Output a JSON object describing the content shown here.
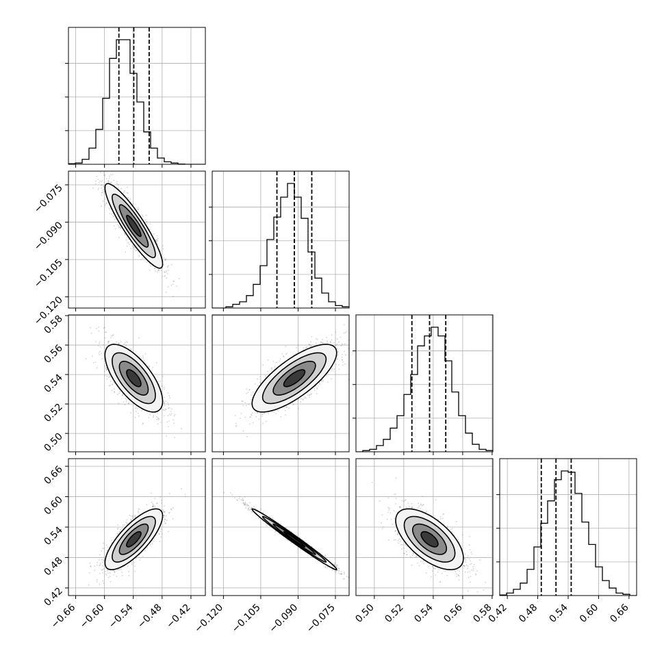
{
  "chart_data": {
    "type": "corner",
    "grid": true,
    "parameters": [
      {
        "range": [
          -0.675,
          -0.39
        ],
        "ticks": [
          -0.66,
          -0.6,
          -0.54,
          -0.48,
          -0.42
        ],
        "tick_labels": [
          "−0.66",
          "−0.60",
          "−0.54",
          "−0.48",
          "−0.42"
        ],
        "quantiles": [
          -0.57,
          -0.539,
          -0.507
        ]
      },
      {
        "range": [
          -0.1245,
          -0.0695
        ],
        "ticks": [
          -0.12,
          -0.105,
          -0.09,
          -0.075
        ],
        "tick_labels": [
          "−0.120",
          "−0.105",
          "−0.090",
          "−0.075"
        ],
        "quantiles": [
          -0.0985,
          -0.0915,
          -0.0845
        ]
      },
      {
        "range": [
          0.4875,
          0.5805
        ],
        "ticks": [
          0.5,
          0.52,
          0.54,
          0.56,
          0.58
        ],
        "tick_labels": [
          "0.50",
          "0.52",
          "0.54",
          "0.56",
          "0.58"
        ],
        "quantiles": [
          0.5255,
          0.5375,
          0.5485
        ]
      },
      {
        "range": [
          0.405,
          0.675
        ],
        "ticks": [
          0.42,
          0.48,
          0.54,
          0.6,
          0.66
        ],
        "tick_labels": [
          "0.42",
          "0.48",
          "0.54",
          "0.60",
          "0.66"
        ],
        "quantiles": [
          0.487,
          0.516,
          0.546
        ]
      }
    ],
    "histograms": [
      [
        0.005,
        0.01,
        0.04,
        0.13,
        0.28,
        0.53,
        0.85,
        1.0,
        1.0,
        0.73,
        0.5,
        0.26,
        0.13,
        0.05,
        0.02,
        0.01,
        0.002,
        0.0,
        0.0,
        0.0
      ],
      [
        0.0,
        0.0,
        0.01,
        0.03,
        0.05,
        0.1,
        0.19,
        0.34,
        0.55,
        0.73,
        0.89,
        1.0,
        0.89,
        0.72,
        0.45,
        0.24,
        0.12,
        0.05,
        0.02,
        0.01
      ],
      [
        0.0,
        0.01,
        0.02,
        0.05,
        0.1,
        0.19,
        0.29,
        0.46,
        0.62,
        0.85,
        0.93,
        1.0,
        0.93,
        0.73,
        0.48,
        0.29,
        0.15,
        0.06,
        0.02,
        0.01
      ],
      [
        0.005,
        0.02,
        0.05,
        0.1,
        0.21,
        0.39,
        0.58,
        0.76,
        0.93,
        1.0,
        0.99,
        0.82,
        0.59,
        0.41,
        0.23,
        0.12,
        0.06,
        0.02,
        0.01,
        0.0
      ]
    ],
    "pairs": [
      {
        "row": 1,
        "col": 0,
        "mean": [
          -0.539,
          -0.0915
        ],
        "sigma": [
          0.03,
          0.0085
        ],
        "rho": -0.9
      },
      {
        "row": 2,
        "col": 0,
        "mean": [
          -0.539,
          0.5375
        ],
        "sigma": [
          0.03,
          0.0115
        ],
        "rho": -0.68
      },
      {
        "row": 2,
        "col": 1,
        "mean": [
          -0.0915,
          0.5375
        ],
        "sigma": [
          0.0085,
          0.0115
        ],
        "rho": 0.75
      },
      {
        "row": 3,
        "col": 0,
        "mean": [
          -0.539,
          0.516
        ],
        "sigma": [
          0.03,
          0.03
        ],
        "rho": 0.77
      },
      {
        "row": 3,
        "col": 1,
        "mean": [
          -0.0915,
          0.516
        ],
        "sigma": [
          0.0085,
          0.03
        ],
        "rho": -0.99
      },
      {
        "row": 3,
        "col": 2,
        "mean": [
          0.5375,
          0.516
        ],
        "sigma": [
          0.0115,
          0.03
        ],
        "rho": -0.62
      }
    ],
    "contour_levels_sigma": [
      0.5,
      1.0,
      1.5,
      2.0
    ],
    "colors": {
      "line": "#000000",
      "grid": "#b0b0b0",
      "points": "#7f7f7f",
      "background": "#ffffff"
    }
  }
}
